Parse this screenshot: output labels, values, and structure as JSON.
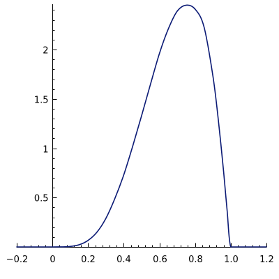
{
  "chart_data": {
    "type": "line",
    "title": "",
    "xlabel": "",
    "ylabel": "",
    "xlim": [
      -0.2,
      1.2
    ],
    "ylim": [
      0,
      2.46
    ],
    "grid": false,
    "legend": "none",
    "x_ticks": {
      "major": [
        -0.2,
        0,
        0.2,
        0.4,
        0.6,
        0.8,
        1.0,
        1.2
      ],
      "labels": [
        "−0.2",
        "0",
        "0.2",
        "0.4",
        "0.6",
        "0.8",
        "1.0",
        "1.2"
      ],
      "minor_step": 0.04
    },
    "y_ticks": {
      "major": [
        0.5,
        1,
        1.5,
        2
      ],
      "labels": [
        "0.5",
        "1",
        "1.5",
        "2"
      ],
      "minor_step": 0.1
    },
    "series": [
      {
        "color": "#0b1a75",
        "x": [
          -0.2,
          -0.1,
          0,
          0.05,
          0.1,
          0.15,
          0.2,
          0.25,
          0.3,
          0.35,
          0.4,
          0.45,
          0.5,
          0.55,
          0.6,
          0.65,
          0.7,
          0.75,
          0.8,
          0.85,
          0.9,
          0.93,
          0.96,
          0.98,
          1.0,
          1.05,
          1.1,
          1.15,
          1.2
        ],
        "y": [
          0,
          0,
          0,
          0.0003,
          0.0046,
          0.022,
          0.066,
          0.15,
          0.29,
          0.49,
          0.73,
          1.02,
          1.33,
          1.65,
          1.96,
          2.21,
          2.39,
          2.45,
          2.41,
          2.23,
          1.73,
          1.29,
          0.76,
          0.36,
          0,
          0,
          0,
          0,
          0
        ]
      }
    ]
  }
}
